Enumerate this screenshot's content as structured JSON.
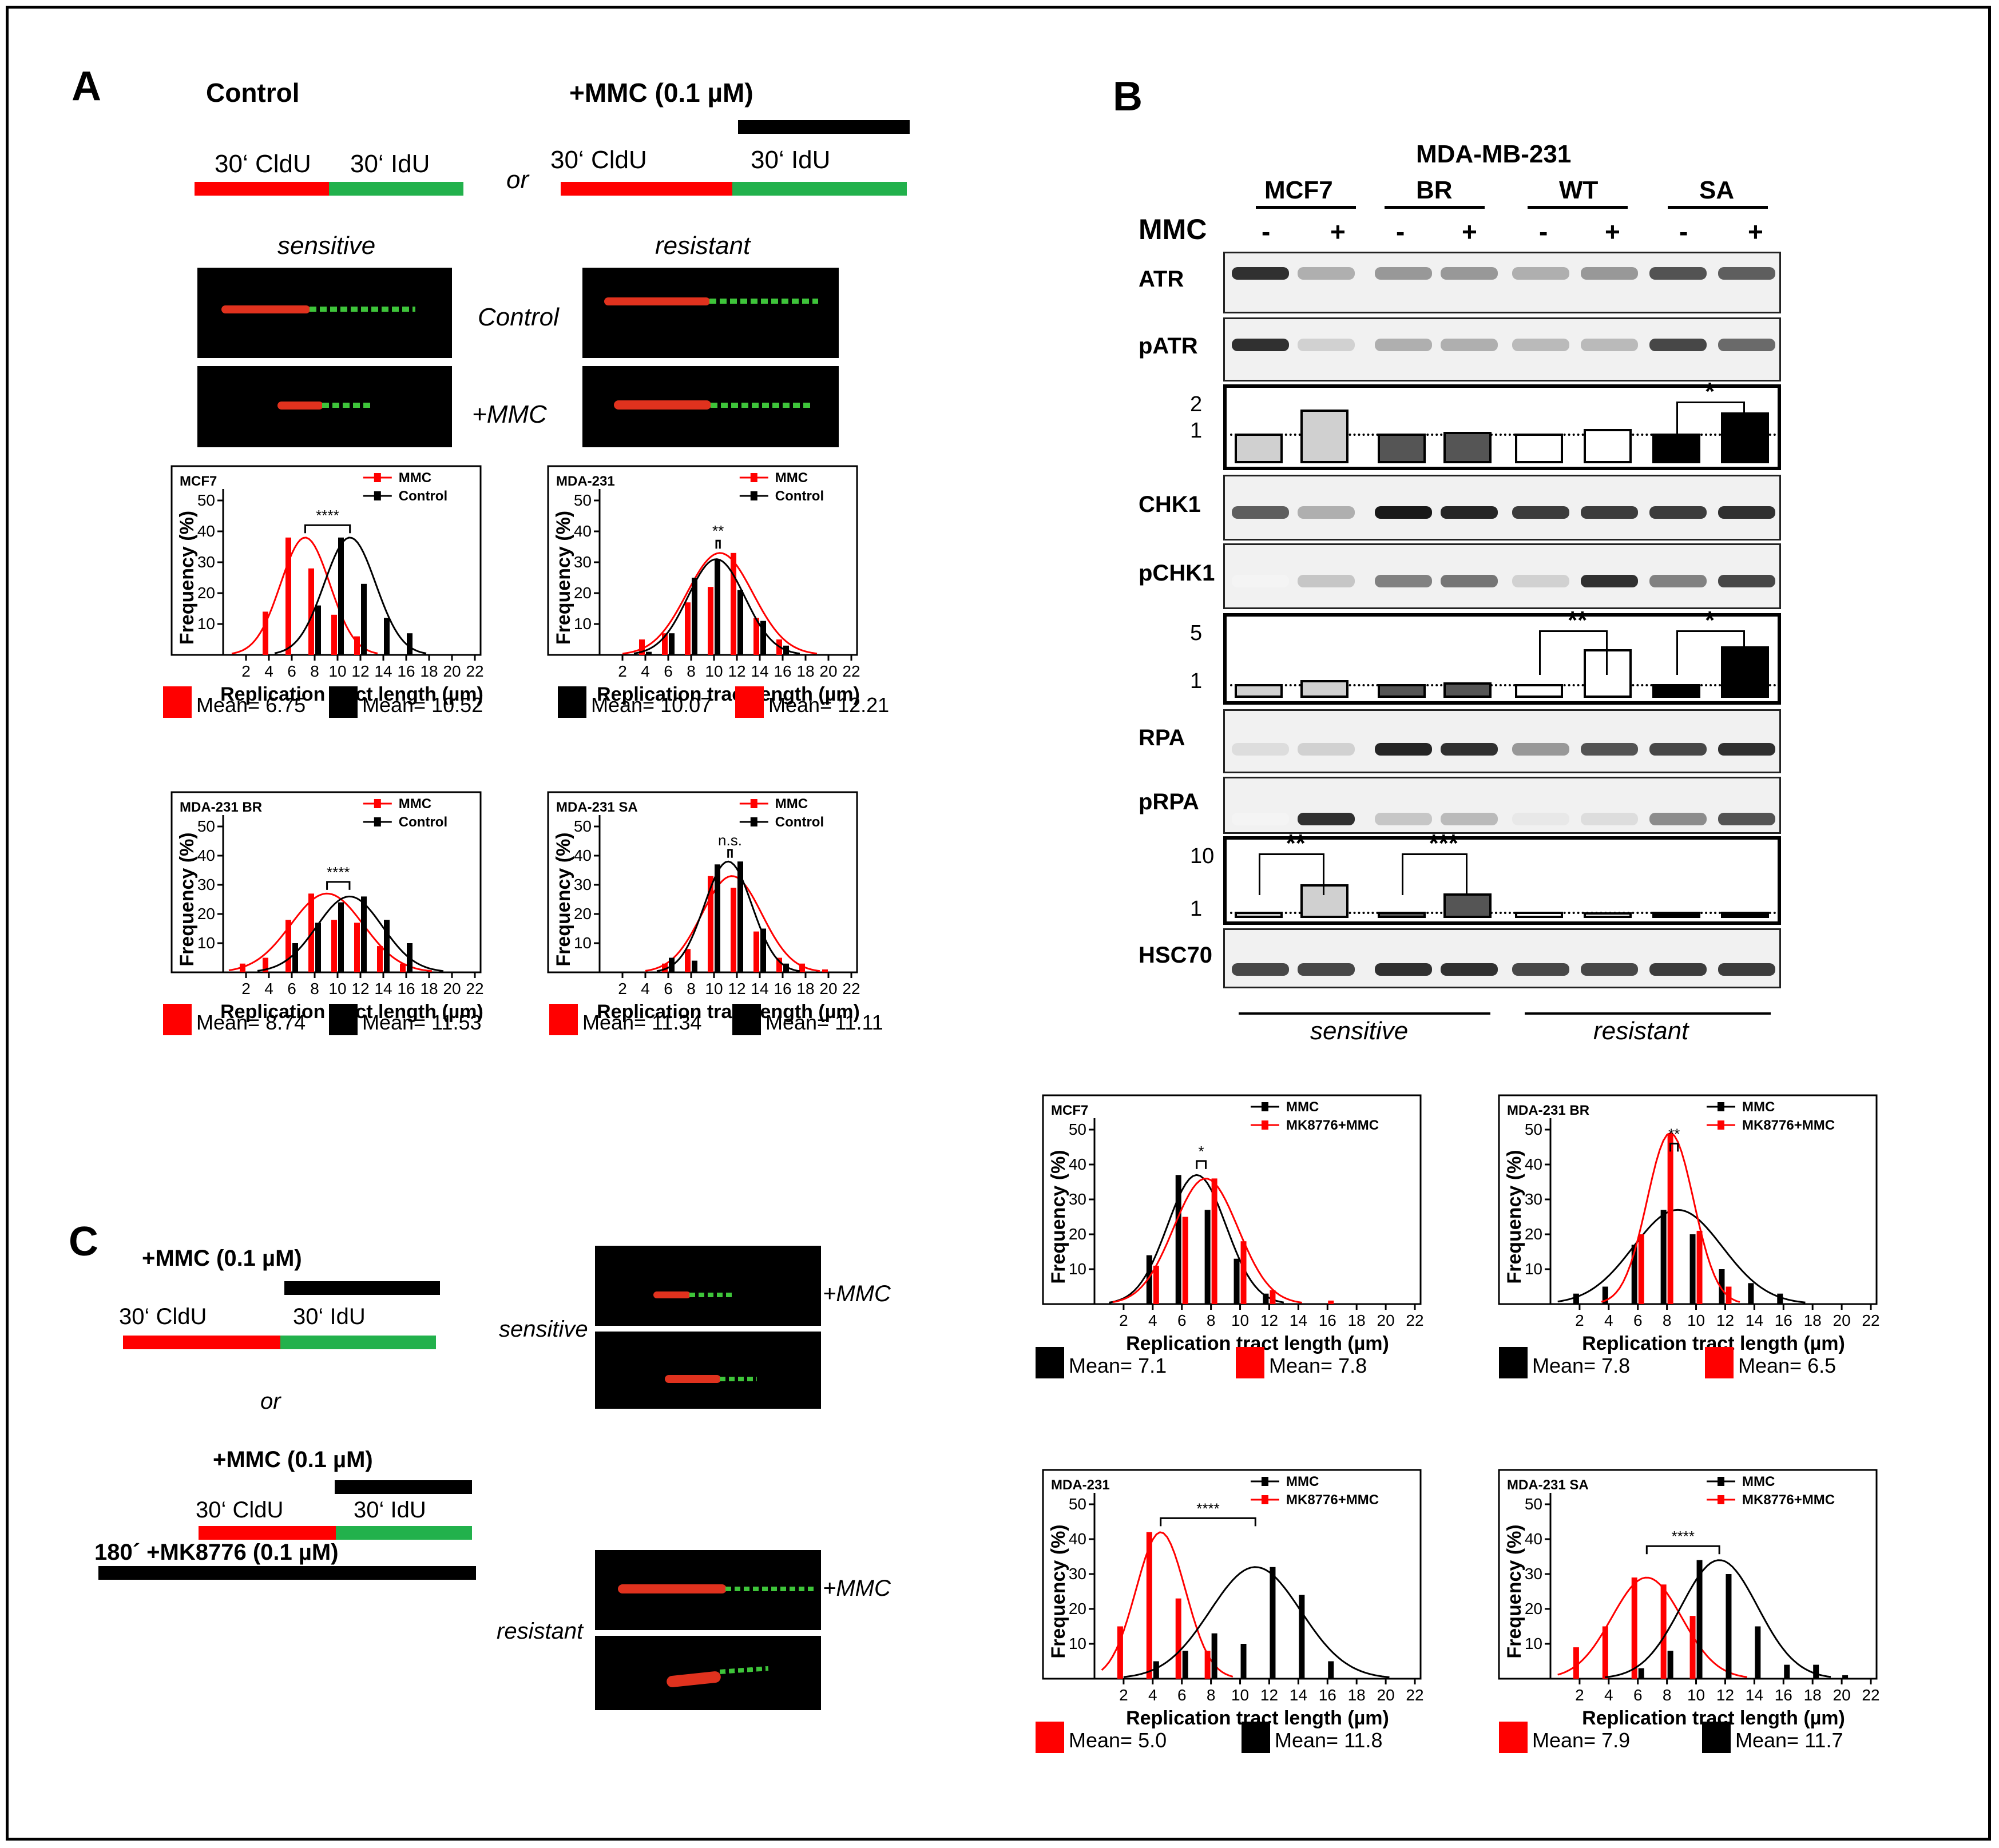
{
  "colors": {
    "red": "#ff0000",
    "green": "#22b14c",
    "black": "#000000",
    "light": "#d0d0d0",
    "dark": "#555555",
    "white": "#ffffff"
  },
  "panelA": {
    "letter": "A",
    "control_title": "Control",
    "mmc_title": "+MMC (0.1 µM)",
    "or": "or",
    "cldu": "30‘ CldU",
    "idu": "30‘ IdU",
    "sensitive": "sensitive",
    "resistant": "resistant",
    "row_control": "Control",
    "row_mmc": "+MMC"
  },
  "panelB": {
    "letter": "B",
    "cellline_header": "MDA-MB-231",
    "groups": [
      "MCF7",
      "BR",
      "WT",
      "SA"
    ],
    "mmc_label": "MMC",
    "signs": [
      "-",
      "+",
      "-",
      "+",
      "-",
      "+",
      "-",
      "+"
    ],
    "blots": [
      "ATR",
      "pATR",
      "CHK1",
      "pCHK1",
      "RPA",
      "pRPA",
      "HSC70"
    ],
    "quant1": {
      "axis": [
        "2",
        "1"
      ],
      "sig": "*",
      "values": [
        1,
        1.8,
        1,
        1.05,
        1,
        1.15,
        1,
        1.7
      ]
    },
    "quant2": {
      "axis": [
        "5",
        "1"
      ],
      "sig": [
        "**",
        "*"
      ],
      "values": [
        1,
        1.3,
        1,
        1.15,
        1,
        3.6,
        1,
        3.8
      ]
    },
    "quant3": {
      "axis": [
        "10",
        "1"
      ],
      "sig": [
        "**",
        "***"
      ],
      "values": [
        1,
        5.2,
        1,
        3.8,
        1,
        0.9,
        1,
        1
      ]
    },
    "sensitive": "sensitive",
    "resistant": "resistant"
  },
  "panelC": {
    "letter": "C",
    "mmc": "+MMC (0.1 µM)",
    "cldu": "30‘ CldU",
    "idu": "30‘ IdU",
    "or": "or",
    "mk": "180´ +MK8776 (0.1 µM)",
    "sensitive": "sensitive",
    "resistant": "resistant",
    "mmc_tag": "+MMC"
  },
  "chart_data": [
    {
      "id": "a1",
      "type": "bar",
      "title": "MCF7",
      "xlabel": "Replication tract length (µm)",
      "ylabel": "Frequency (%)",
      "ylim": [
        0,
        50
      ],
      "xlim": [
        0,
        22
      ],
      "legend": [
        "MMC",
        "Control"
      ],
      "sig": "****",
      "series": [
        {
          "name": "MMC",
          "x": [
            4,
            6,
            8,
            10,
            12
          ],
          "values": [
            14,
            38,
            28,
            13,
            6
          ]
        },
        {
          "name": "Control",
          "x": [
            8,
            10,
            12,
            14,
            16
          ],
          "values": [
            16,
            38,
            23,
            12,
            7
          ]
        }
      ],
      "mean_labels": [
        "Mean= 6.75",
        "Mean= 10.52"
      ]
    },
    {
      "id": "a2",
      "type": "bar",
      "title": "MDA-231",
      "xlabel": "Replication tract length (µm)",
      "ylabel": "Frequency (%)",
      "ylim": [
        0,
        50
      ],
      "xlim": [
        0,
        22
      ],
      "legend": [
        "MMC",
        "Control"
      ],
      "sig": "**",
      "series": [
        {
          "name": "MMC",
          "x": [
            4,
            6,
            8,
            10,
            12,
            14,
            16
          ],
          "values": [
            5,
            7,
            17,
            22,
            33,
            12,
            5
          ]
        },
        {
          "name": "Control",
          "x": [
            4,
            6,
            8,
            10,
            12,
            14,
            16
          ],
          "values": [
            1,
            7,
            25,
            31,
            21,
            11,
            3
          ]
        }
      ],
      "mean_labels": [
        "Mean= 10.07",
        "Mean= 12.21"
      ]
    },
    {
      "id": "a3",
      "type": "bar",
      "title": "MDA-231 BR",
      "xlabel": "Replication tract length (µm)",
      "ylabel": "Frequency (%)",
      "ylim": [
        0,
        50
      ],
      "xlim": [
        0,
        22
      ],
      "legend": [
        "MMC",
        "Control"
      ],
      "sig": "****",
      "series": [
        {
          "name": "MMC",
          "x": [
            2,
            4,
            6,
            8,
            10,
            12,
            14,
            16
          ],
          "values": [
            3,
            5,
            18,
            27,
            18,
            17,
            9,
            3
          ]
        },
        {
          "name": "Control",
          "x": [
            6,
            8,
            10,
            12,
            14,
            16
          ],
          "values": [
            10,
            17,
            24,
            26,
            18,
            10
          ]
        }
      ],
      "mean_labels": [
        "Mean= 8.74",
        "Mean= 11.53"
      ]
    },
    {
      "id": "a4",
      "type": "bar",
      "title": "MDA-231 SA",
      "xlabel": "Replication tract length (µm)",
      "ylabel": "Frequency (%)",
      "ylim": [
        0,
        50
      ],
      "xlim": [
        0,
        22
      ],
      "legend": [
        "MMC",
        "Control"
      ],
      "sig": "n.s.",
      "series": [
        {
          "name": "MMC",
          "x": [
            6,
            8,
            10,
            12,
            14,
            16,
            18,
            20
          ],
          "values": [
            3,
            8,
            33,
            29,
            14,
            5,
            3,
            1
          ]
        },
        {
          "name": "Control",
          "x": [
            6,
            8,
            10,
            12,
            14,
            16
          ],
          "values": [
            5,
            4,
            37,
            38,
            15,
            3
          ]
        }
      ],
      "mean_labels": [
        "Mean= 11.34",
        "Mean= 11.11"
      ]
    },
    {
      "id": "b1",
      "type": "bar",
      "title": "MCF7",
      "xlabel": "Replication tract length (µm)",
      "ylabel": "Frequency (%)",
      "ylim": [
        0,
        50
      ],
      "xlim": [
        0,
        22
      ],
      "legend": [
        "MMC",
        "MK8776+MMC"
      ],
      "sig": "*",
      "series": [
        {
          "name": "MMC",
          "x": [
            4,
            6,
            8,
            10,
            12
          ],
          "values": [
            14,
            37,
            27,
            13,
            3
          ]
        },
        {
          "name": "MK8776+MMC",
          "x": [
            4,
            6,
            8,
            10,
            12,
            16
          ],
          "values": [
            11,
            25,
            36,
            18,
            4,
            1
          ]
        }
      ],
      "mean_labels": [
        "Mean= 7.1",
        "Mean= 7.8"
      ]
    },
    {
      "id": "b2",
      "type": "bar",
      "title": "MDA-231 BR",
      "xlabel": "Replication tract length (µm)",
      "ylabel": "Frequency (%)",
      "ylim": [
        0,
        50
      ],
      "xlim": [
        0,
        22
      ],
      "legend": [
        "MMC",
        "MK8776+MMC"
      ],
      "sig": "**",
      "series": [
        {
          "name": "MMC",
          "x": [
            2,
            4,
            6,
            8,
            10,
            12,
            14,
            16
          ],
          "values": [
            3,
            5,
            17,
            27,
            20,
            10,
            6,
            3
          ]
        },
        {
          "name": "MK8776+MMC",
          "x": [
            6,
            8,
            10,
            12
          ],
          "values": [
            20,
            49,
            21,
            5
          ]
        }
      ],
      "mean_labels": [
        "Mean= 7.8",
        "Mean= 6.5"
      ]
    },
    {
      "id": "b3",
      "type": "bar",
      "title": "MDA-231",
      "xlabel": "Replication tract length (µm)",
      "ylabel": "Frequency (%)",
      "ylim": [
        0,
        50
      ],
      "xlim": [
        0,
        22
      ],
      "legend": [
        "MMC",
        "MK8776+MMC"
      ],
      "sig": "****",
      "series": [
        {
          "name": "MK8776+MMC",
          "x": [
            2,
            4,
            6,
            8
          ],
          "values": [
            15,
            42,
            23,
            8
          ]
        },
        {
          "name": "MMC",
          "x": [
            4,
            6,
            8,
            10,
            12,
            14,
            16
          ],
          "values": [
            5,
            8,
            13,
            10,
            32,
            24,
            5
          ]
        }
      ],
      "mean_labels": [
        "Mean= 5.0",
        "Mean= 11.8"
      ]
    },
    {
      "id": "b4",
      "type": "bar",
      "title": "MDA-231 SA",
      "xlabel": "Replication tract length (µm)",
      "ylabel": "Frequency (%)",
      "ylim": [
        0,
        50
      ],
      "xlim": [
        0,
        22
      ],
      "legend": [
        "MMC",
        "MK8776+MMC"
      ],
      "sig": "****",
      "series": [
        {
          "name": "MK8776+MMC",
          "x": [
            2,
            4,
            6,
            8,
            10
          ],
          "values": [
            9,
            15,
            29,
            27,
            18
          ]
        },
        {
          "name": "MMC",
          "x": [
            6,
            8,
            10,
            12,
            14,
            16,
            18,
            20
          ],
          "values": [
            3,
            8,
            34,
            30,
            15,
            4,
            4,
            1
          ]
        }
      ],
      "mean_labels": [
        "Mean= 7.9",
        "Mean= 11.7"
      ]
    }
  ]
}
